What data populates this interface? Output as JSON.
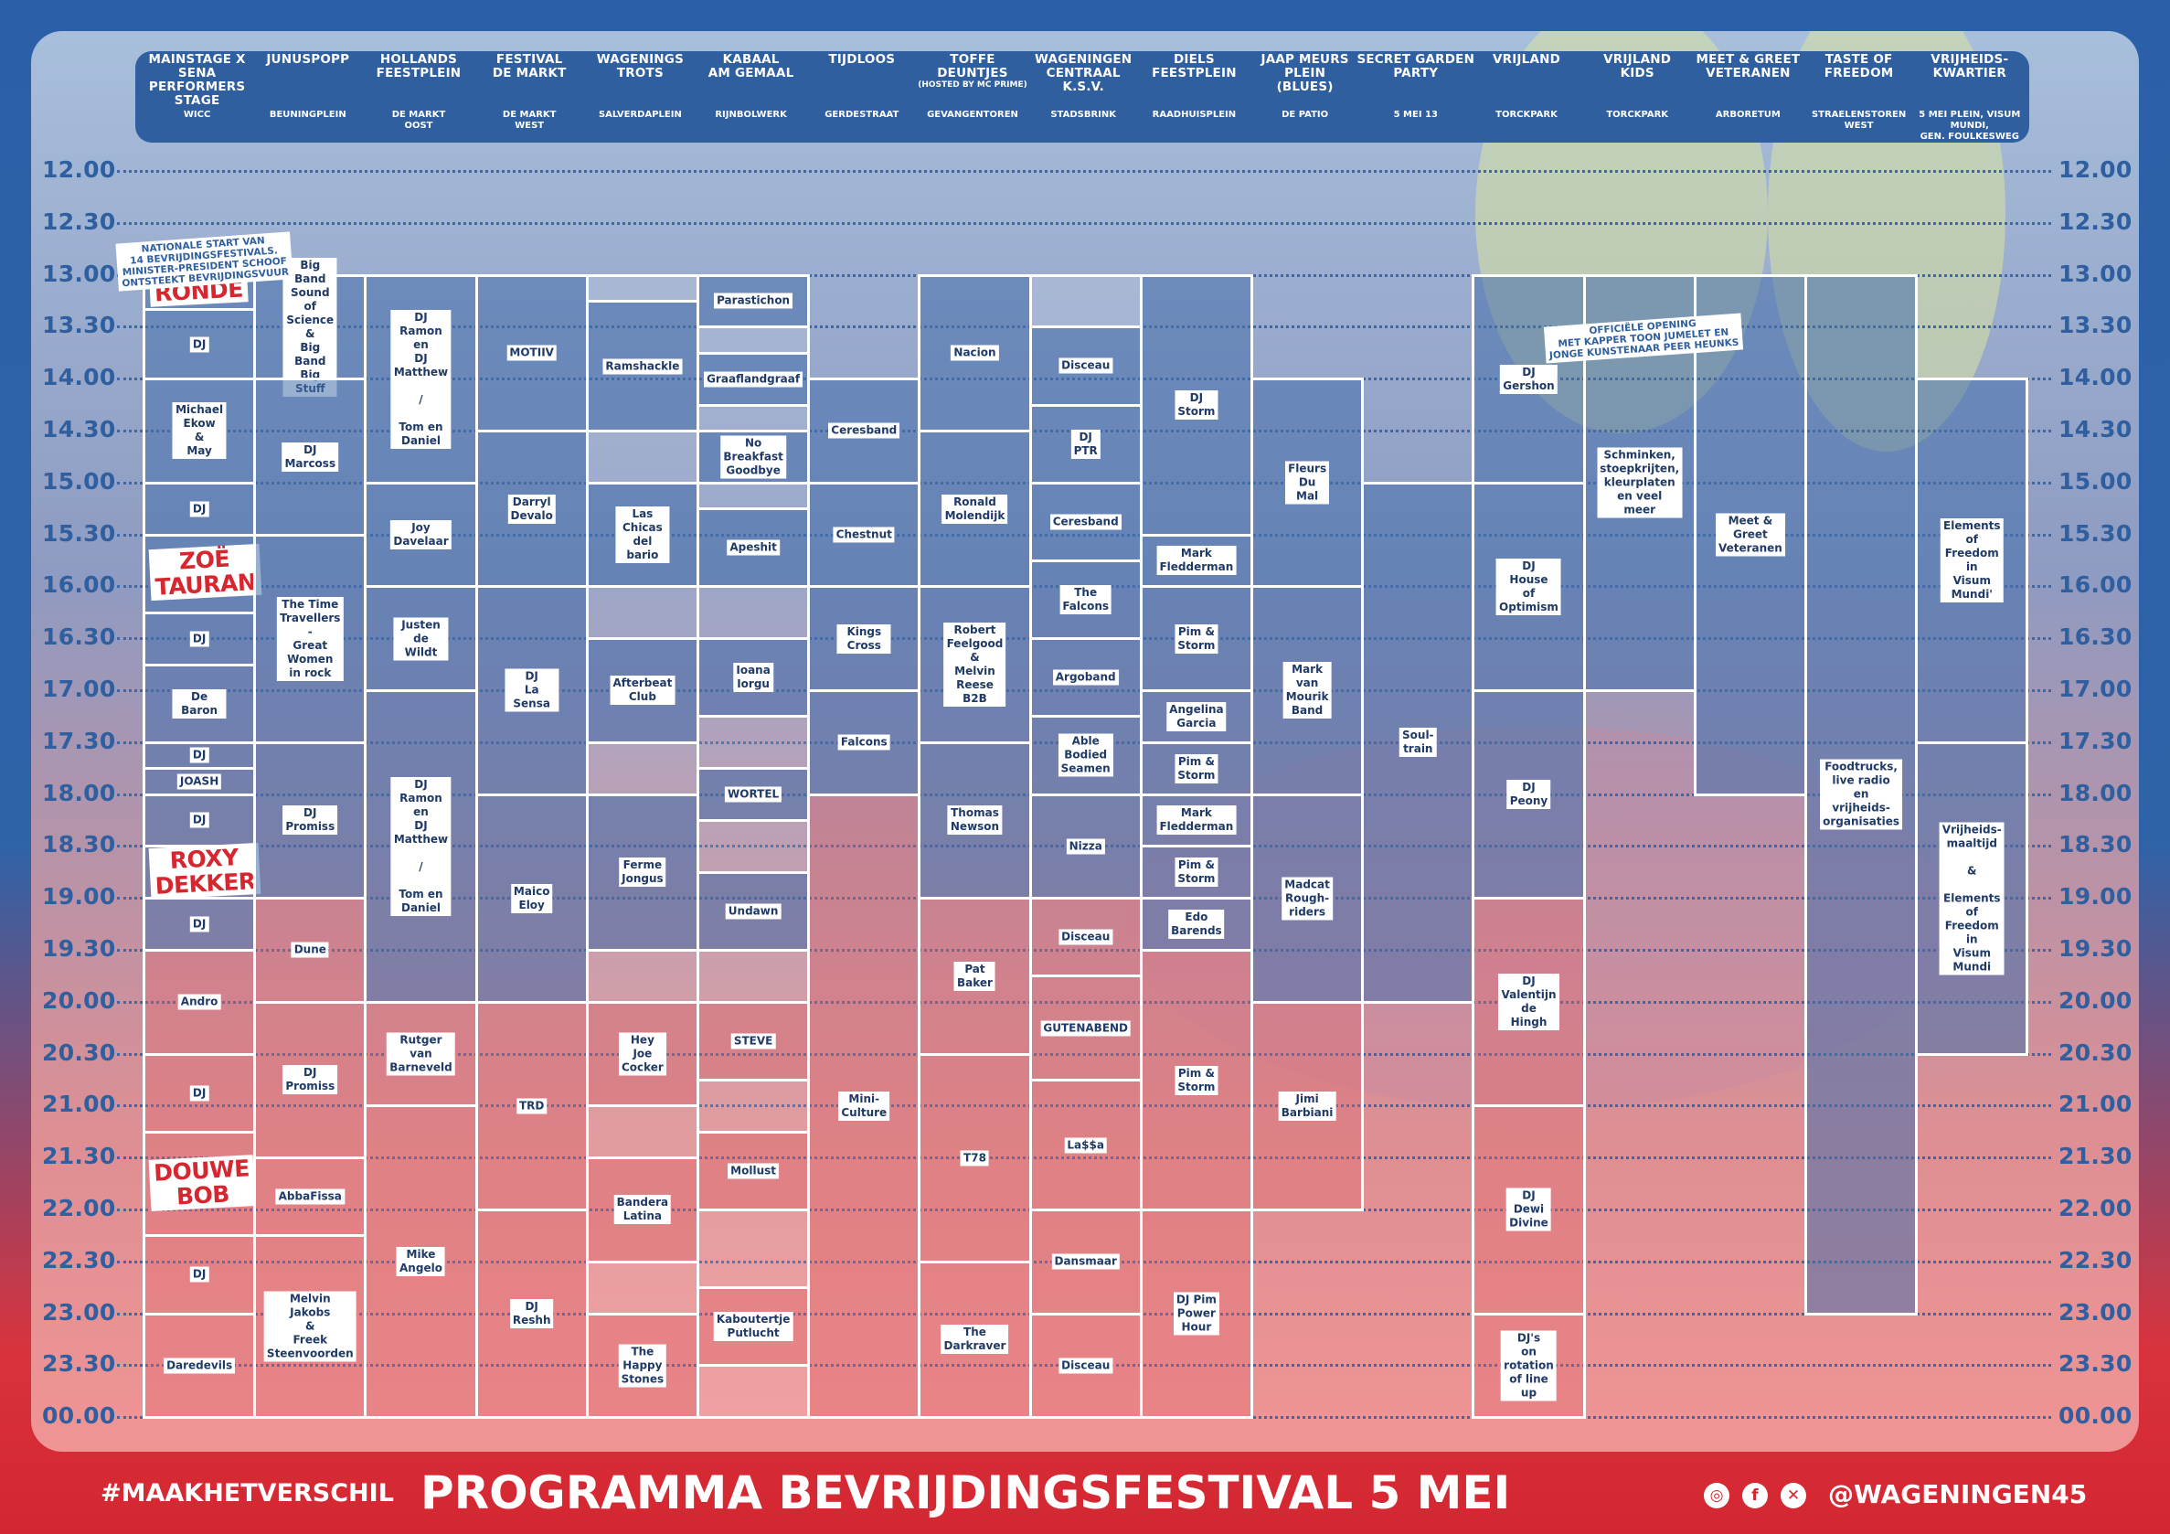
{
  "colors": {
    "accent_blue": "#2f5f9f",
    "accent_red": "#d6262f",
    "cell_blue": "#5b83b8",
    "cell_red": "#e07277"
  },
  "times": [
    "12.00",
    "12.30",
    "13.00",
    "13.30",
    "14.00",
    "14.30",
    "15.00",
    "15.30",
    "16.00",
    "16.30",
    "17.00",
    "17.30",
    "18.00",
    "18.30",
    "19.00",
    "19.30",
    "20.00",
    "20.30",
    "21.00",
    "21.30",
    "22.00",
    "22.30",
    "23.00",
    "23.30",
    "00.00"
  ],
  "stages": [
    {
      "name": "Mainstage x SENA\nPerformers Stage",
      "sub": "WICC"
    },
    {
      "name": "Junuspopp",
      "sub": "Beuningplein"
    },
    {
      "name": "Hollands\nFeestplein",
      "sub": "De Markt\nOost"
    },
    {
      "name": "Festival\nDe Markt",
      "sub": "De Markt\nWest"
    },
    {
      "name": "Wagenings\nTrots",
      "sub": "Salverdaplein"
    },
    {
      "name": "Kabaal\nAm Gemaal",
      "sub": "Rijnbolwerk"
    },
    {
      "name": "Tijdloos",
      "sub": "Gerdestraat"
    },
    {
      "name": "Toffe Deuntjes",
      "sub": "Gevangentoren",
      "sub2": "(hosted by MC Prime)"
    },
    {
      "name": "Wageningen\nCentraal K.S.V.",
      "sub": "Stadsbrink"
    },
    {
      "name": "Diels\nFeestplein",
      "sub": "Raadhuisplein"
    },
    {
      "name": "Jaap Meurs Plein\n(Blues)",
      "sub": "De Patio"
    },
    {
      "name": "Secret Garden\nParty",
      "sub": "5 Mei 13"
    },
    {
      "name": "Vrijland",
      "sub": "Torckpark"
    },
    {
      "name": "Vrijland\nKids",
      "sub": "Torckpark"
    },
    {
      "name": "Meet & Greet\nVeteranen",
      "sub": "Arboretum"
    },
    {
      "name": "Taste of\nFreedom",
      "sub": "Straelenstoren\nWest"
    },
    {
      "name": "Vrijheids-\nkwartier",
      "sub": "5 Mei Plein, Visum Mundi,\nGen. Foulkesweg"
    }
  ],
  "slots": [
    {
      "col": 0,
      "s": 0,
      "e": 0.33,
      "t": "",
      "big": "RONDÉ"
    },
    {
      "col": 0,
      "s": 0.33,
      "e": 1.0,
      "t": "DJ"
    },
    {
      "col": 0,
      "s": 1.0,
      "e": 2.0,
      "t": "Michael Ekow\n&\nMay"
    },
    {
      "col": 0,
      "s": 2.0,
      "e": 2.5,
      "t": "DJ"
    },
    {
      "col": 0,
      "s": 2.5,
      "e": 3.25,
      "t": "",
      "big": "ZOË\nTAURAN"
    },
    {
      "col": 0,
      "s": 3.25,
      "e": 3.75,
      "t": "DJ"
    },
    {
      "col": 0,
      "s": 3.75,
      "e": 4.5,
      "t": "De Baron"
    },
    {
      "col": 0,
      "s": 4.5,
      "e": 4.75,
      "t": "DJ"
    },
    {
      "col": 0,
      "s": 4.75,
      "e": 5.0,
      "t": "JOASH"
    },
    {
      "col": 0,
      "s": 5.0,
      "e": 5.5,
      "t": "DJ"
    },
    {
      "col": 0,
      "s": 5.5,
      "e": 6.0,
      "t": "",
      "big": "ROXY\nDEKKER"
    },
    {
      "col": 0,
      "s": 6.0,
      "e": 6.5,
      "t": "DJ"
    },
    {
      "col": 0,
      "s": 6.5,
      "e": 7.5,
      "t": "Andro"
    },
    {
      "col": 0,
      "s": 7.5,
      "e": 8.25,
      "t": "DJ"
    },
    {
      "col": 0,
      "s": 8.25,
      "e": 9.25,
      "t": "",
      "big": "DOUWE\nBOB"
    },
    {
      "col": 0,
      "s": 9.25,
      "e": 10.0,
      "t": "DJ"
    },
    {
      "col": 0,
      "s": 10.0,
      "e": 11.0,
      "t": "Daredevils"
    },
    {
      "col": 1,
      "s": 0,
      "e": 1.0,
      "t": "Big Band\nSound of Science\n&\nBig Band\nBig Stuff"
    },
    {
      "col": 1,
      "s": 1.0,
      "e": 2.5,
      "t": "DJ Marcoss"
    },
    {
      "col": 1,
      "s": 2.5,
      "e": 4.5,
      "t": "The Time\nTravellers\n-\nGreat Women\nin rock"
    },
    {
      "col": 1,
      "s": 4.5,
      "e": 6.0,
      "t": "DJ\nPromiss"
    },
    {
      "col": 1,
      "s": 6.0,
      "e": 7.0,
      "t": "Dune"
    },
    {
      "col": 1,
      "s": 7.0,
      "e": 8.5,
      "t": "DJ\nPromiss"
    },
    {
      "col": 1,
      "s": 8.5,
      "e": 9.25,
      "t": "AbbaFissa"
    },
    {
      "col": 1,
      "s": 9.25,
      "e": 11.0,
      "t": "Melvin\nJakobs\n&\nFreek\nSteenvoorden"
    },
    {
      "col": 2,
      "s": 0,
      "e": 2.0,
      "t": "DJ Ramon en\nDJ Matthew\n\n/\n\nTom en\nDaniel"
    },
    {
      "col": 2,
      "s": 2.0,
      "e": 3.0,
      "t": "Joy\nDavelaar"
    },
    {
      "col": 2,
      "s": 3.0,
      "e": 4.0,
      "t": "Justen\nde Wildt"
    },
    {
      "col": 2,
      "s": 4.0,
      "e": 7.0,
      "t": "DJ Ramon en\nDJ Matthew\n\n/\n\nTom en\nDaniel"
    },
    {
      "col": 2,
      "s": 7.0,
      "e": 8.0,
      "t": "Rutger\nvan Barneveld"
    },
    {
      "col": 2,
      "s": 8.0,
      "e": 11.0,
      "t": "Mike\nAngelo"
    },
    {
      "col": 3,
      "s": 0,
      "e": 1.5,
      "t": "MOTIIV"
    },
    {
      "col": 3,
      "s": 1.5,
      "e": 3.0,
      "t": "Darryl\nDevalo"
    },
    {
      "col": 3,
      "s": 3.0,
      "e": 5.0,
      "t": "DJ\nLa Sensa"
    },
    {
      "col": 3,
      "s": 5.0,
      "e": 7.0,
      "t": "Maico\nEloy"
    },
    {
      "col": 3,
      "s": 7.0,
      "e": 9.0,
      "t": "TRD"
    },
    {
      "col": 3,
      "s": 9.0,
      "e": 11.0,
      "t": "DJ\nReshh"
    },
    {
      "col": 4,
      "s": 0,
      "e": 0.25,
      "t": ""
    },
    {
      "col": 4,
      "s": 0.25,
      "e": 1.5,
      "t": "Ramshackle"
    },
    {
      "col": 4,
      "s": 1.5,
      "e": 2.0,
      "t": ""
    },
    {
      "col": 4,
      "s": 2.0,
      "e": 3.0,
      "t": "Las Chicas\ndel bario"
    },
    {
      "col": 4,
      "s": 3.0,
      "e": 3.5,
      "t": ""
    },
    {
      "col": 4,
      "s": 3.5,
      "e": 4.5,
      "t": "Afterbeat\nClub"
    },
    {
      "col": 4,
      "s": 4.5,
      "e": 5.0,
      "t": ""
    },
    {
      "col": 4,
      "s": 5.0,
      "e": 6.5,
      "t": "Ferme\nJongus"
    },
    {
      "col": 4,
      "s": 6.5,
      "e": 7.0,
      "t": ""
    },
    {
      "col": 4,
      "s": 7.0,
      "e": 8.0,
      "t": "Hey\nJoe\nCocker"
    },
    {
      "col": 4,
      "s": 8.0,
      "e": 8.5,
      "t": ""
    },
    {
      "col": 4,
      "s": 8.5,
      "e": 9.5,
      "t": "Bandera\nLatina"
    },
    {
      "col": 4,
      "s": 9.5,
      "e": 10.0,
      "t": ""
    },
    {
      "col": 4,
      "s": 10.0,
      "e": 11.0,
      "t": "The\nHappy\nStones"
    },
    {
      "col": 5,
      "s": 0,
      "e": 0.5,
      "t": "Parastichon"
    },
    {
      "col": 5,
      "s": 0.5,
      "e": 0.75,
      "t": ""
    },
    {
      "col": 5,
      "s": 0.75,
      "e": 1.25,
      "t": "Graaflandgraaf"
    },
    {
      "col": 5,
      "s": 1.25,
      "e": 1.5,
      "t": ""
    },
    {
      "col": 5,
      "s": 1.5,
      "e": 2.0,
      "t": "No Breakfast\nGoodbye"
    },
    {
      "col": 5,
      "s": 2.0,
      "e": 2.25,
      "t": ""
    },
    {
      "col": 5,
      "s": 2.25,
      "e": 3.0,
      "t": "Apeshit"
    },
    {
      "col": 5,
      "s": 3.0,
      "e": 3.5,
      "t": ""
    },
    {
      "col": 5,
      "s": 3.5,
      "e": 4.25,
      "t": "Ioana\nIorgu"
    },
    {
      "col": 5,
      "s": 4.25,
      "e": 4.75,
      "t": ""
    },
    {
      "col": 5,
      "s": 4.75,
      "e": 5.25,
      "t": "WORTEL"
    },
    {
      "col": 5,
      "s": 5.25,
      "e": 5.75,
      "t": ""
    },
    {
      "col": 5,
      "s": 5.75,
      "e": 6.5,
      "t": "Undawn"
    },
    {
      "col": 5,
      "s": 6.5,
      "e": 7.0,
      "t": ""
    },
    {
      "col": 5,
      "s": 7.0,
      "e": 7.75,
      "t": "STEVE"
    },
    {
      "col": 5,
      "s": 7.75,
      "e": 8.25,
      "t": ""
    },
    {
      "col": 5,
      "s": 8.25,
      "e": 9.0,
      "t": "Mollust"
    },
    {
      "col": 5,
      "s": 9.0,
      "e": 9.75,
      "t": ""
    },
    {
      "col": 5,
      "s": 9.75,
      "e": 10.5,
      "t": "Kaboutertje\nPutlucht"
    },
    {
      "col": 5,
      "s": 10.5,
      "e": 11.0,
      "t": ""
    },
    {
      "col": 6,
      "s": 1.0,
      "e": 2.0,
      "t": "Ceresband"
    },
    {
      "col": 6,
      "s": 2.0,
      "e": 3.0,
      "t": "Chestnut"
    },
    {
      "col": 6,
      "s": 3.0,
      "e": 4.0,
      "t": "Kings Cross"
    },
    {
      "col": 6,
      "s": 4.0,
      "e": 5.0,
      "t": "Falcons"
    },
    {
      "col": 6,
      "s": 5.0,
      "e": 11.0,
      "t": "Mini-\nCulture"
    },
    {
      "col": 7,
      "s": 0,
      "e": 1.5,
      "t": "Nacion"
    },
    {
      "col": 7,
      "s": 1.5,
      "e": 3.0,
      "t": "Ronald\nMolendijk"
    },
    {
      "col": 7,
      "s": 3.0,
      "e": 4.5,
      "t": "Robert\nFeelgood\n&\nMelvin Reese\nB2B"
    },
    {
      "col": 7,
      "s": 4.5,
      "e": 6.0,
      "t": "Thomas\nNewson"
    },
    {
      "col": 7,
      "s": 6.0,
      "e": 7.5,
      "t": "Pat\nBaker"
    },
    {
      "col": 7,
      "s": 7.5,
      "e": 9.5,
      "t": "T78"
    },
    {
      "col": 7,
      "s": 9.5,
      "e": 11.0,
      "t": "The\nDarkraver"
    },
    {
      "col": 8,
      "s": 0,
      "e": 0.5,
      "t": ""
    },
    {
      "col": 8,
      "s": 0.5,
      "e": 1.25,
      "t": "Disceau"
    },
    {
      "col": 8,
      "s": 1.25,
      "e": 2.0,
      "t": "DJ\nPTR"
    },
    {
      "col": 8,
      "s": 2.0,
      "e": 2.75,
      "t": "Ceresband"
    },
    {
      "col": 8,
      "s": 2.75,
      "e": 3.5,
      "t": "The\nFalcons"
    },
    {
      "col": 8,
      "s": 3.5,
      "e": 4.25,
      "t": "Argoband"
    },
    {
      "col": 8,
      "s": 4.25,
      "e": 5.0,
      "t": "Able\nBodied\nSeamen"
    },
    {
      "col": 8,
      "s": 5.0,
      "e": 6.0,
      "t": "Nizza"
    },
    {
      "col": 8,
      "s": 6.0,
      "e": 6.75,
      "t": "Disceau"
    },
    {
      "col": 8,
      "s": 6.75,
      "e": 7.75,
      "t": "GUTENABEND"
    },
    {
      "col": 8,
      "s": 7.75,
      "e": 9.0,
      "t": "La$$a"
    },
    {
      "col": 8,
      "s": 9.0,
      "e": 10.0,
      "t": "Dansmaar"
    },
    {
      "col": 8,
      "s": 10.0,
      "e": 11.0,
      "t": "Disceau"
    },
    {
      "col": 9,
      "s": 0,
      "e": 2.5,
      "t": "DJ\nStorm"
    },
    {
      "col": 9,
      "s": 2.5,
      "e": 3.0,
      "t": "Mark\nFledderman"
    },
    {
      "col": 9,
      "s": 3.0,
      "e": 4.0,
      "t": "Pim &\nStorm"
    },
    {
      "col": 9,
      "s": 4.0,
      "e": 4.5,
      "t": "Angelina\nGarcia"
    },
    {
      "col": 9,
      "s": 4.5,
      "e": 5.0,
      "t": "Pim &\nStorm"
    },
    {
      "col": 9,
      "s": 5.0,
      "e": 5.5,
      "t": "Mark\nFledderman"
    },
    {
      "col": 9,
      "s": 5.5,
      "e": 6.0,
      "t": "Pim &\nStorm"
    },
    {
      "col": 9,
      "s": 6.0,
      "e": 6.5,
      "t": "Edo\nBarends"
    },
    {
      "col": 9,
      "s": 6.5,
      "e": 9.0,
      "t": "Pim &\nStorm"
    },
    {
      "col": 9,
      "s": 9.0,
      "e": 11.0,
      "t": "DJ Pim\nPower\nHour"
    },
    {
      "col": 10,
      "s": 1.0,
      "e": 3.0,
      "t": "Fleurs\nDu\nMal"
    },
    {
      "col": 10,
      "s": 3.0,
      "e": 5.0,
      "t": "Mark\nvan\nMourik\nBand"
    },
    {
      "col": 10,
      "s": 5.0,
      "e": 7.0,
      "t": "Madcat\nRough-\nriders"
    },
    {
      "col": 10,
      "s": 7.0,
      "e": 9.0,
      "t": "Jimi\nBarbiani"
    },
    {
      "col": 11,
      "s": 2.0,
      "e": 7.0,
      "t": "Soul-\ntrain"
    },
    {
      "col": 12,
      "s": 0,
      "e": 2.0,
      "t": "DJ\nGershon"
    },
    {
      "col": 12,
      "s": 2.0,
      "e": 4.0,
      "t": "DJ\nHouse\nof\nOptimism"
    },
    {
      "col": 12,
      "s": 4.0,
      "e": 6.0,
      "t": "DJ\nPeony"
    },
    {
      "col": 12,
      "s": 6.0,
      "e": 8.0,
      "t": "DJ\nValentijn\nde\nHingh"
    },
    {
      "col": 12,
      "s": 8.0,
      "e": 10.0,
      "t": "DJ\nDewi\nDivine"
    },
    {
      "col": 12,
      "s": 10.0,
      "e": 11.0,
      "t": "DJ's\non rotation\nof line up"
    },
    {
      "col": 13,
      "s": 0,
      "e": 4.0,
      "t": "Schminken,\nstoepkrijten,\nkleurplaten\nen veel meer"
    },
    {
      "col": 14,
      "s": 0,
      "e": 5.0,
      "t": "Meet &\nGreet\nVeteranen"
    },
    {
      "col": 15,
      "s": 0,
      "e": 10.0,
      "t": "Foodtrucks,\nlive radio\nen vrijheids-\norganisaties"
    },
    {
      "col": 16,
      "s": 1.0,
      "e": 4.5,
      "t": "Elements of\nFreedom in\nVisum Mundi'"
    },
    {
      "col": 16,
      "s": 4.5,
      "e": 7.5,
      "t": "Vrijheids-\nmaaltijd\n\n&\n\nElements of\nFreedom in\nVisum Mundi"
    }
  ],
  "notes": {
    "national_start": "Nationale start van\n14 bevrijdingsfestivals.\nMinister-president schoof\nontsteekt bevrijdingsvuur",
    "opening": "Officiële opening\nmet Kapper Toon Jumelet en\njonge kunstenaar Peer Heunks"
  },
  "footer": {
    "hashtag": "#MAAKHETVERSCHIL",
    "title": "PROGRAMMA BEVRIJDINGSFESTIVAL 5 MEI",
    "handle": "@WAGENINGEN45",
    "icons": [
      "instagram-icon",
      "facebook-icon",
      "x-icon"
    ]
  }
}
